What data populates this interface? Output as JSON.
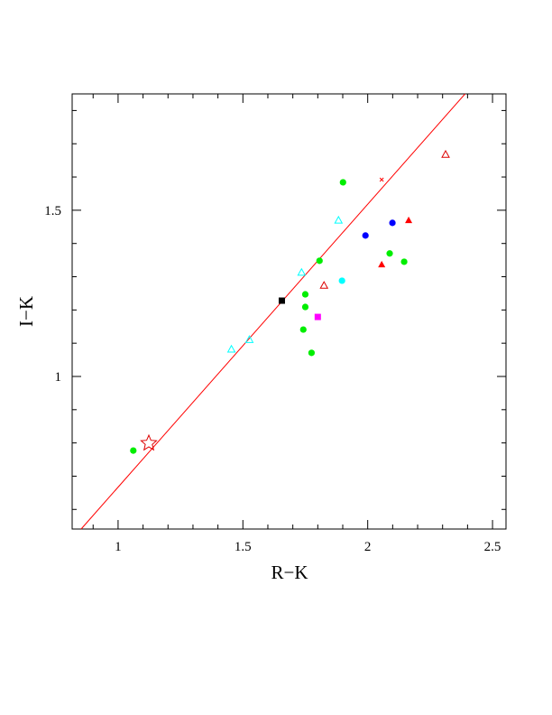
{
  "chart_data": {
    "type": "scatter",
    "x_label": "R−K",
    "y_label": "I−K",
    "xlim": [
      0.816,
      2.554
    ],
    "ylim": [
      0.541,
      1.85
    ],
    "xticks": [
      1,
      1.5,
      2,
      2.5
    ],
    "yticks": [
      1,
      1.5
    ],
    "xminor": [
      0.9,
      1.1,
      1.2,
      1.3,
      1.4,
      1.6,
      1.7,
      1.8,
      1.9,
      2.1,
      2.2,
      2.3,
      2.4
    ],
    "yminor": [
      0.6,
      0.7,
      0.8,
      0.9,
      1.1,
      1.2,
      1.3,
      1.4,
      1.6,
      1.7,
      1.8
    ],
    "series": [
      {
        "marker": "line",
        "color": "#ff0000",
        "x": [
          0.852,
          2.39
        ],
        "values": [
          0.541,
          1.85
        ]
      },
      {
        "marker": "circle",
        "color": "#00ee00",
        "x": [
          1.061,
          1.901,
          1.807,
          1.75,
          1.75,
          1.742,
          1.775,
          2.088,
          2.146
        ],
        "values": [
          0.777,
          1.584,
          1.348,
          1.247,
          1.209,
          1.141,
          1.071,
          1.37,
          1.345
        ]
      },
      {
        "marker": "circle",
        "color": "#0000ff",
        "x": [
          1.991,
          2.099
        ],
        "values": [
          1.424,
          1.462
        ]
      },
      {
        "marker": "circle",
        "color": "#00ffff",
        "x": [
          1.897
        ],
        "values": [
          1.288
        ]
      },
      {
        "marker": "open-triangle",
        "color": "#00ffff",
        "x": [
          1.454,
          1.526,
          1.735,
          1.883
        ],
        "values": [
          1.082,
          1.111,
          1.313,
          1.47
        ]
      },
      {
        "marker": "open-triangle",
        "color": "#dd0000",
        "x": [
          1.825,
          2.312
        ],
        "values": [
          1.274,
          1.668
        ]
      },
      {
        "marker": "triangle",
        "color": "#ff0000",
        "x": [
          2.056,
          2.164
        ],
        "values": [
          1.337,
          1.47
        ]
      },
      {
        "marker": "square",
        "color": "#000000",
        "x": [
          1.656
        ],
        "values": [
          1.228
        ]
      },
      {
        "marker": "square",
        "color": "#ff00ff",
        "x": [
          1.8
        ],
        "values": [
          1.179
        ]
      },
      {
        "marker": "star",
        "color": "#dd0000",
        "x": [
          1.123
        ],
        "values": [
          0.799
        ]
      },
      {
        "marker": "cross",
        "color": "#ff0000",
        "x": [
          2.056
        ],
        "values": [
          1.592
        ]
      }
    ]
  }
}
